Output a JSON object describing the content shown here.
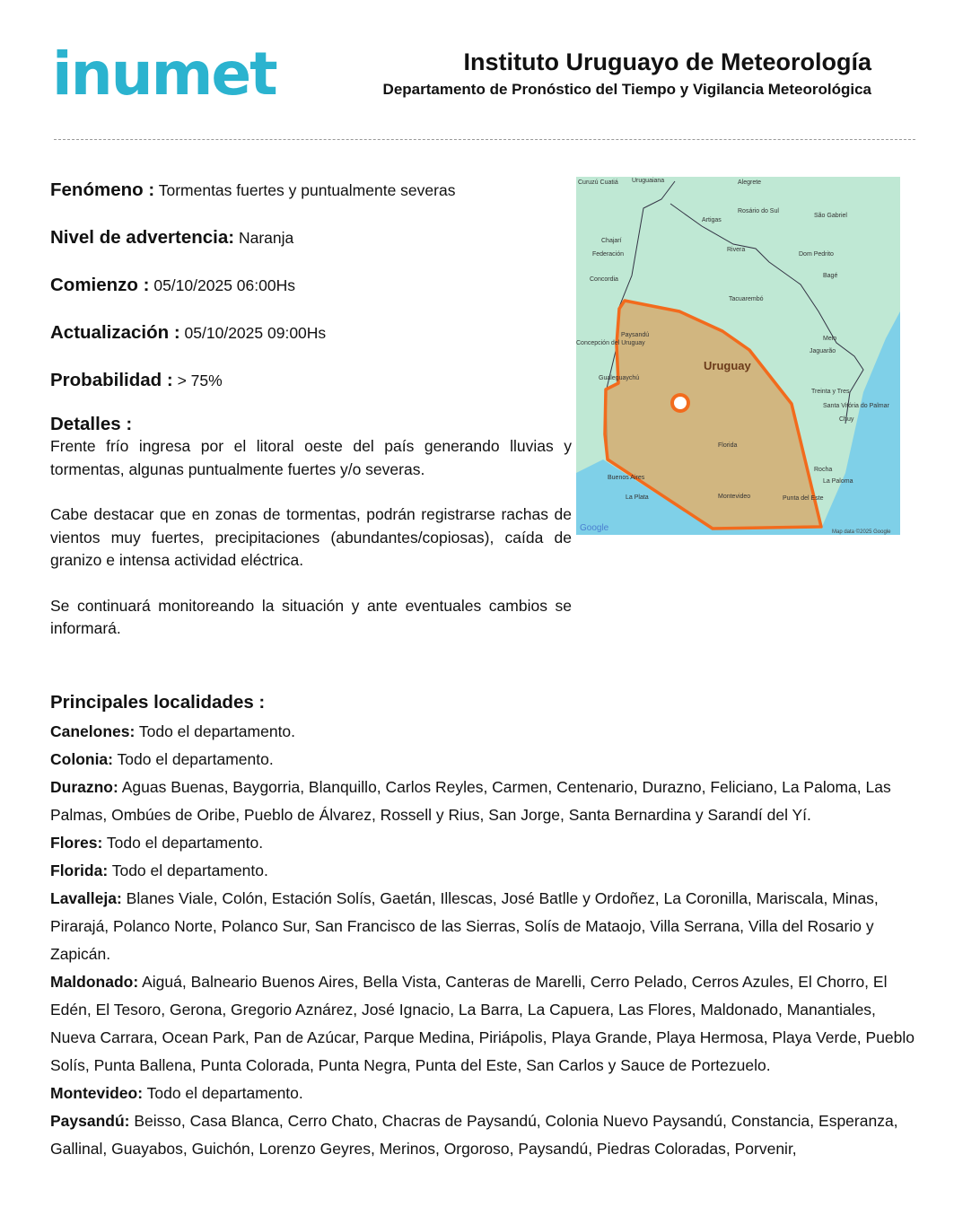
{
  "header": {
    "logo_text": "inumet",
    "title": "Instituto Uruguayo de Meteorología",
    "subtitle": "Departamento de Pronóstico del Tiempo y Vigilancia Meteorológica"
  },
  "fields": [
    {
      "label": "Fenómeno :",
      "value": "Tormentas fuertes y puntualmente severas"
    },
    {
      "label": "Nivel de advertencia:",
      "value": "Naranja"
    },
    {
      "label": "Comienzo :",
      "value": "05/10/2025 06:00Hs"
    },
    {
      "label": "Actualización :",
      "value": "05/10/2025 09:00Hs"
    },
    {
      "label": "Probabilidad :",
      "value": "> 75%"
    }
  ],
  "details": {
    "heading": "Detalles :",
    "paragraphs": [
      "Frente frío ingresa por el litoral oeste del país generando lluvias y tormentas, algunas puntualmente fuertes y/o severas.",
      "Cabe destacar que en zonas de tormentas, podrán registrarse rachas de vientos muy fuertes, precipitaciones (abundantes/copiosas), caída de granizo e intensa actividad eléctrica.",
      "Se continuará monitoreando la situación y ante eventuales cambios se informará."
    ]
  },
  "map": {
    "warning_color": "#f26b1d",
    "icon": "storm-cloud-icon",
    "country_label": "Uruguay",
    "labels": [
      "Curuzú Cuatiá",
      "Uruguaiana",
      "Alegrete",
      "Rosário do Sul",
      "São Gabriel",
      "Artigas",
      "Chajarí",
      "Rivera",
      "Federación",
      "Dom Pedrito",
      "Concordia",
      "Bagé",
      "Tacuarembó",
      "Paysandú",
      "Melo",
      "Concepción del Uruguay",
      "Jaguarão",
      "Gualeguaychú",
      "Treinta y Tres",
      "Santa Vitória do Palmar",
      "Chuy",
      "Florida",
      "Rocha",
      "La Paloma",
      "Buenos Aires",
      "Montevideo",
      "Punta del Este",
      "La Plata"
    ],
    "google_label": "Google",
    "attribution": "Map data ©2025 Google"
  },
  "localidades": {
    "heading": "Principales localidades :",
    "items": [
      {
        "dept": "Canelones:",
        "text": "Todo el departamento."
      },
      {
        "dept": "Colonia:",
        "text": "Todo el departamento."
      },
      {
        "dept": "Durazno:",
        "text": "Aguas Buenas, Baygorria, Blanquillo, Carlos Reyles, Carmen, Centenario, Durazno, Feliciano, La Paloma, Las Palmas, Ombúes de Oribe, Pueblo de Álvarez, Rossell y Rius, San Jorge, Santa Bernardina y Sarandí del Yí."
      },
      {
        "dept": "Flores:",
        "text": "Todo el departamento."
      },
      {
        "dept": "Florida:",
        "text": "Todo el departamento."
      },
      {
        "dept": "Lavalleja:",
        "text": "Blanes Viale, Colón, Estación Solís, Gaetán, Illescas, José Batlle y Ordoñez, La Coronilla, Mariscala, Minas, Pirarajá, Polanco Norte, Polanco Sur, San Francisco de las Sierras, Solís de Mataojo, Villa Serrana, Villa del Rosario y Zapicán."
      },
      {
        "dept": "Maldonado:",
        "text": "Aiguá, Balneario Buenos Aires, Bella Vista, Canteras de Marelli, Cerro Pelado, Cerros Azules, El Chorro, El Edén, El Tesoro, Gerona, Gregorio Aznárez, José Ignacio, La Barra, La Capuera, Las Flores, Maldonado, Manantiales, Nueva Carrara, Ocean Park, Pan de Azúcar, Parque Medina, Piriápolis, Playa Grande, Playa Hermosa, Playa Verde, Pueblo Solís, Punta Ballena, Punta Colorada, Punta Negra, Punta del Este, San Carlos y Sauce de Portezuelo."
      },
      {
        "dept": "Montevideo:",
        "text": "Todo el departamento."
      },
      {
        "dept": "Paysandú:",
        "text": "Beisso, Casa Blanca, Cerro Chato, Chacras de Paysandú, Colonia Nuevo Paysandú, Constancia, Esperanza, Gallinal, Guayabos, Guichón, Lorenzo Geyres, Merinos, Orgoroso, Paysandú, Piedras Coloradas, Porvenir,"
      }
    ]
  }
}
